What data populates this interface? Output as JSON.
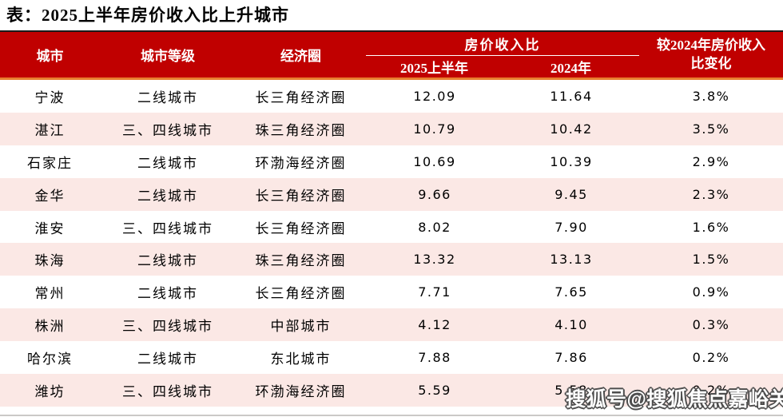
{
  "title": "表：2025上半年房价收入比上升城市",
  "table_header": {
    "city": "城市",
    "tier": "城市等级",
    "region": "经济圈",
    "ratio_group": "房价收入比",
    "sub_2025h1": "2025上半年",
    "sub_2024": "2024年",
    "change_line1": "较2024年房价收入",
    "change_line2": "比变化"
  },
  "chart_data": {
    "type": "table",
    "title": "表：2025上半年房价收入比上升城市",
    "columns": [
      "城市",
      "城市等级",
      "经济圈",
      "房价收入比 2025上半年",
      "房价收入比 2024年",
      "较2024年房价收入比变化"
    ],
    "rows": [
      {
        "city": "宁波",
        "tier": "二线城市",
        "region": "长三角经济圈",
        "ratio_2025h1": "12.09",
        "ratio_2024": "11.64",
        "change": "3.8%"
      },
      {
        "city": "湛江",
        "tier": "三、四线城市",
        "region": "珠三角经济圈",
        "ratio_2025h1": "10.79",
        "ratio_2024": "10.42",
        "change": "3.5%"
      },
      {
        "city": "石家庄",
        "tier": "二线城市",
        "region": "环渤海经济圈",
        "ratio_2025h1": "10.69",
        "ratio_2024": "10.39",
        "change": "2.9%"
      },
      {
        "city": "金华",
        "tier": "二线城市",
        "region": "长三角经济圈",
        "ratio_2025h1": "9.66",
        "ratio_2024": "9.45",
        "change": "2.3%"
      },
      {
        "city": "淮安",
        "tier": "三、四线城市",
        "region": "长三角经济圈",
        "ratio_2025h1": "8.02",
        "ratio_2024": "7.90",
        "change": "1.6%"
      },
      {
        "city": "珠海",
        "tier": "二线城市",
        "region": "珠三角经济圈",
        "ratio_2025h1": "13.32",
        "ratio_2024": "13.13",
        "change": "1.5%"
      },
      {
        "city": "常州",
        "tier": "二线城市",
        "region": "长三角经济圈",
        "ratio_2025h1": "7.71",
        "ratio_2024": "7.65",
        "change": "0.9%"
      },
      {
        "city": "株洲",
        "tier": "三、四线城市",
        "region": "中部城市",
        "ratio_2025h1": "4.12",
        "ratio_2024": "4.10",
        "change": "0.3%"
      },
      {
        "city": "哈尔滨",
        "tier": "二线城市",
        "region": "东北城市",
        "ratio_2025h1": "7.88",
        "ratio_2024": "7.86",
        "change": "0.2%"
      },
      {
        "city": "潍坊",
        "tier": "三、四线城市",
        "region": "环渤海经济圈",
        "ratio_2025h1": "5.59",
        "ratio_2024": "5.58",
        "change": "0.2%"
      }
    ]
  },
  "watermark": {
    "text": "搜狐号@搜狐焦点嘉峪关站"
  },
  "colors": {
    "header_red": "#C00000",
    "row_pink": "#FBE8E5",
    "accent_orange": "#E87F2F",
    "top_border": "#1a1a1a",
    "header_text": "#ffffff",
    "body_text": "#000000"
  }
}
